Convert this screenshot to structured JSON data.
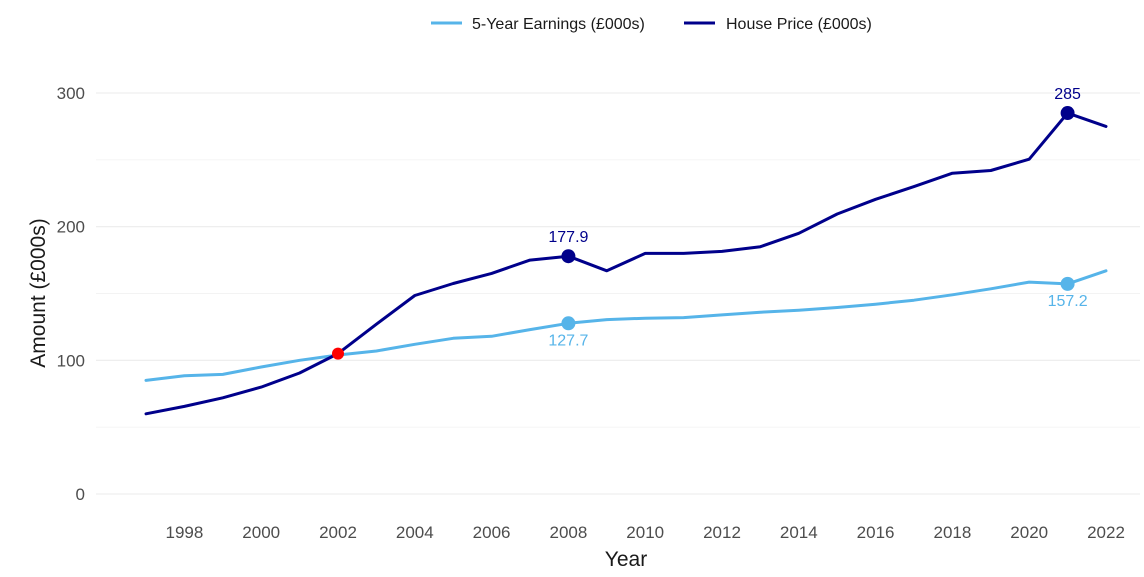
{
  "chart_data": {
    "type": "line",
    "title": "",
    "xlabel": "Year",
    "ylabel": "Amount (£000s)",
    "xlim": [
      1997,
      2022
    ],
    "ylim": [
      0,
      300
    ],
    "x_ticks": [
      1998,
      2000,
      2002,
      2004,
      2006,
      2008,
      2010,
      2012,
      2014,
      2016,
      2018,
      2020,
      2022
    ],
    "y_ticks": [
      0,
      100,
      200,
      300
    ],
    "grid": true,
    "legend_position": "top",
    "x": [
      1997,
      1998,
      1999,
      2000,
      2001,
      2002,
      2003,
      2004,
      2005,
      2006,
      2007,
      2008,
      2009,
      2010,
      2011,
      2012,
      2013,
      2014,
      2015,
      2016,
      2017,
      2018,
      2019,
      2020,
      2021,
      2022
    ],
    "series": [
      {
        "name": "5-Year Earnings (£000s)",
        "color": "#56b4e9",
        "values": [
          85,
          88.5,
          89.5,
          95,
          100,
          104,
          107,
          112,
          116.5,
          118,
          123,
          127.7,
          130.5,
          131.5,
          132,
          134,
          136,
          137.5,
          139.5,
          142,
          145,
          149,
          153.5,
          158.5,
          157.2,
          167
        ]
      },
      {
        "name": "House Price (£000s)",
        "color": "#00008b",
        "values": [
          60,
          65.5,
          72,
          80,
          90.5,
          105,
          127,
          148.5,
          157.5,
          165,
          175,
          177.9,
          167,
          180,
          180,
          181.5,
          185,
          195,
          209.5,
          220.5,
          230,
          240,
          242,
          250.5,
          285,
          275
        ]
      }
    ],
    "annotations": [
      {
        "series": 1,
        "x": 2008,
        "y": 177.9,
        "label": "177.9",
        "position": "above",
        "color": "#00008b"
      },
      {
        "series": 1,
        "x": 2021,
        "y": 285,
        "label": "285",
        "position": "above",
        "color": "#00008b"
      },
      {
        "series": 0,
        "x": 2008,
        "y": 127.7,
        "label": "127.7",
        "position": "below",
        "color": "#56b4e9"
      },
      {
        "series": 0,
        "x": 2021,
        "y": 157.2,
        "label": "157.2",
        "position": "below",
        "color": "#56b4e9"
      }
    ],
    "crossover": {
      "x": 2002,
      "y": 105,
      "color": "#ff0000"
    }
  }
}
